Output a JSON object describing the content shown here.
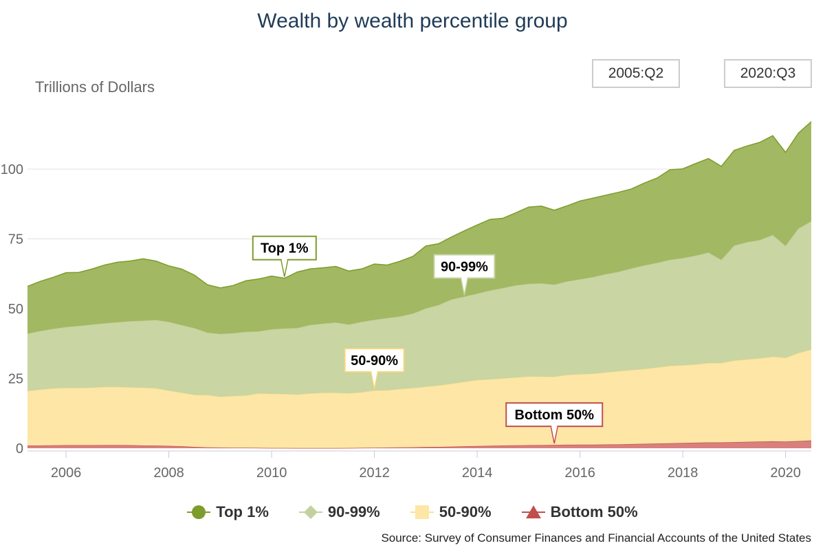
{
  "chart_data": {
    "type": "area",
    "stacked": true,
    "title": "Wealth by wealth percentile group",
    "ylabel": "Trillions of Dollars",
    "xlabel": "",
    "ylim": [
      0,
      120
    ],
    "xlim": [
      2005.25,
      2020.5
    ],
    "y_ticks": [
      0,
      25,
      50,
      75,
      100
    ],
    "x_ticks": [
      2006,
      2008,
      2010,
      2012,
      2014,
      2016,
      2018,
      2020
    ],
    "grid": "horizontal",
    "legend_position": "bottom",
    "range_start": "2005:Q2",
    "range_end": "2020:Q3",
    "source": "Source: Survey of Consumer Finances and Financial Accounts of the United States",
    "x": [
      2005.25,
      2005.5,
      2005.75,
      2006.0,
      2006.25,
      2006.5,
      2006.75,
      2007.0,
      2007.25,
      2007.5,
      2007.75,
      2008.0,
      2008.25,
      2008.5,
      2008.75,
      2009.0,
      2009.25,
      2009.5,
      2009.75,
      2010.0,
      2010.25,
      2010.5,
      2010.75,
      2011.0,
      2011.25,
      2011.5,
      2011.75,
      2012.0,
      2012.25,
      2012.5,
      2012.75,
      2013.0,
      2013.25,
      2013.5,
      2013.75,
      2014.0,
      2014.25,
      2014.5,
      2014.75,
      2015.0,
      2015.25,
      2015.5,
      2015.75,
      2016.0,
      2016.25,
      2016.5,
      2016.75,
      2017.0,
      2017.25,
      2017.5,
      2017.75,
      2018.0,
      2018.25,
      2018.5,
      2018.75,
      2019.0,
      2019.25,
      2019.5,
      2019.75,
      2020.0,
      2020.25,
      2020.5
    ],
    "series": [
      {
        "name": "Bottom 50%",
        "color": "#c0504d",
        "fill": "#d9807e",
        "values": [
          1.0,
          1.0,
          1.05,
          1.1,
          1.1,
          1.1,
          1.15,
          1.15,
          1.1,
          1.0,
          0.95,
          0.85,
          0.7,
          0.5,
          0.3,
          0.25,
          0.2,
          0.2,
          0.15,
          0.1,
          0.1,
          0.05,
          0.05,
          0.05,
          0.05,
          0.1,
          0.15,
          0.2,
          0.25,
          0.3,
          0.35,
          0.45,
          0.5,
          0.6,
          0.7,
          0.8,
          0.9,
          1.0,
          1.05,
          1.1,
          1.15,
          1.2,
          1.25,
          1.3,
          1.3,
          1.35,
          1.4,
          1.5,
          1.6,
          1.7,
          1.8,
          1.9,
          2.0,
          2.1,
          2.1,
          2.2,
          2.3,
          2.4,
          2.5,
          2.4,
          2.6,
          2.8
        ]
      },
      {
        "name": "50-90%",
        "color": "#fbe08f",
        "fill": "#fde6a6",
        "values": [
          19.5,
          20.0,
          20.4,
          20.5,
          20.5,
          20.6,
          20.8,
          20.8,
          20.7,
          20.7,
          20.5,
          19.8,
          19.2,
          18.6,
          18.8,
          18.2,
          18.5,
          18.7,
          19.5,
          19.4,
          19.3,
          19.2,
          19.6,
          19.8,
          19.8,
          19.6,
          19.9,
          20.5,
          20.5,
          20.9,
          21.2,
          21.6,
          22.0,
          22.5,
          23.1,
          23.6,
          23.8,
          24.0,
          24.3,
          24.6,
          24.5,
          24.4,
          25.0,
          25.2,
          25.4,
          25.8,
          26.2,
          26.5,
          26.8,
          27.2,
          27.7,
          27.8,
          28.0,
          28.4,
          28.4,
          29.2,
          29.5,
          29.8,
          30.3,
          30.0,
          31.5,
          32.5
        ]
      },
      {
        "name": "90-99%",
        "color": "#c4d19e",
        "fill": "#c9d5a2",
        "values": [
          20.5,
          21.0,
          21.3,
          21.8,
          22.2,
          22.6,
          22.8,
          23.2,
          23.7,
          24.0,
          24.5,
          24.6,
          24.2,
          23.9,
          22.3,
          22.5,
          22.5,
          22.8,
          22.2,
          23.1,
          23.5,
          23.8,
          24.5,
          24.8,
          25.2,
          24.6,
          25.2,
          25.3,
          25.9,
          26.0,
          26.7,
          28.0,
          28.8,
          30.2,
          30.5,
          31.0,
          31.8,
          32.4,
          33.0,
          33.2,
          33.4,
          33.0,
          33.5,
          34.0,
          34.6,
          35.2,
          35.6,
          36.4,
          37.1,
          37.5,
          38.0,
          38.4,
          39.0,
          39.6,
          37.0,
          41.2,
          42.0,
          42.4,
          43.6,
          40.1,
          44.6,
          46.0
        ]
      },
      {
        "name": "Top 1%",
        "color": "#7d9c2c",
        "fill": "#a2b862",
        "values": [
          17.0,
          17.8,
          18.5,
          19.5,
          19.2,
          19.9,
          20.9,
          21.5,
          21.6,
          22.2,
          21.1,
          20.1,
          20.1,
          19.0,
          17.2,
          16.5,
          17.1,
          18.3,
          18.8,
          19.1,
          18.0,
          20.1,
          20.1,
          20.0,
          20.1,
          19.2,
          19.0,
          20.0,
          19.0,
          19.8,
          20.5,
          22.4,
          22.0,
          22.4,
          23.6,
          24.6,
          25.5,
          25.0,
          26.0,
          27.5,
          27.7,
          26.7,
          27.1,
          28.1,
          28.3,
          28.3,
          28.5,
          28.5,
          29.5,
          30.4,
          32.3,
          32.0,
          33.0,
          33.7,
          33.5,
          34.1,
          34.5,
          35.0,
          35.6,
          33.5,
          34.2,
          35.7
        ]
      }
    ],
    "annotations": [
      {
        "label": "Top 1%",
        "series": "Top 1%",
        "x": 2010.25,
        "border": "#7d9c2c"
      },
      {
        "label": "90-99%",
        "series": "90-99%",
        "x": 2013.75,
        "border": "#c4d19e"
      },
      {
        "label": "50-90%",
        "series": "50-90%",
        "x": 2012.0,
        "border": "#f6d77a"
      },
      {
        "label": "Bottom 50%",
        "series": "Bottom 50%",
        "x": 2015.5,
        "border": "#c0504d"
      }
    ]
  }
}
